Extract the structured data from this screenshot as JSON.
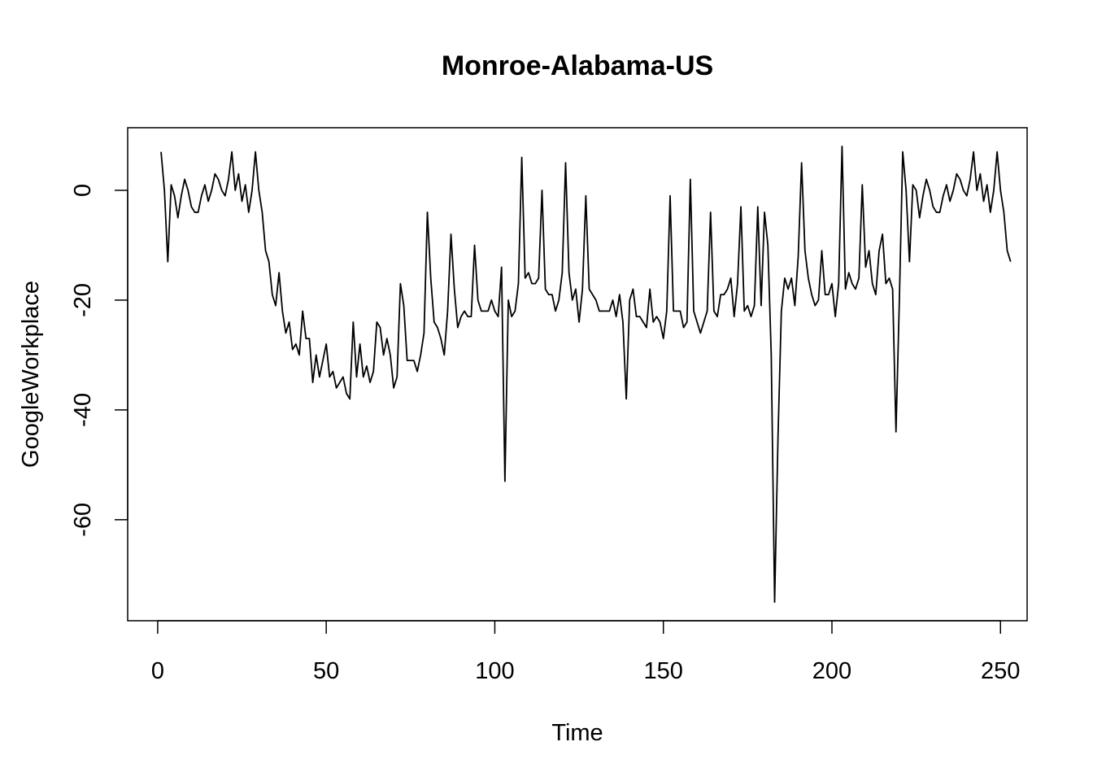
{
  "chart_data": {
    "type": "line",
    "title": "Monroe-Alabama-US",
    "xlabel": "Time",
    "ylabel": "GoogleWorkplace",
    "xlim": [
      -8.9,
      257.9
    ],
    "ylim": [
      -78.4,
      11.4
    ],
    "grid": false,
    "x_ticks": [
      0,
      50,
      100,
      150,
      200,
      250
    ],
    "x_tick_labels": [
      "0",
      "50",
      "100",
      "150",
      "200",
      "250"
    ],
    "y_ticks": [
      0,
      -20,
      -40,
      -60
    ],
    "y_tick_labels": [
      "0",
      "-20",
      "-40",
      "-60"
    ],
    "line_color": "#000000",
    "series": [
      {
        "x_start": 1,
        "values": [
          7,
          0,
          -13,
          1,
          -1,
          -5,
          -1,
          2,
          0,
          -3,
          -4,
          -4,
          -1,
          1,
          -2,
          0,
          3,
          2,
          0,
          -1,
          2,
          7,
          0,
          3,
          -2,
          1,
          -4,
          0,
          7,
          0,
          -4,
          -11,
          -13,
          -19,
          -21,
          -15,
          -22,
          -26,
          -24,
          -29,
          -28,
          -30,
          -22,
          -27,
          -27,
          -35,
          -30,
          -34,
          -31,
          -28,
          -34,
          -33,
          -36,
          -35,
          -34,
          -37,
          -38,
          -24,
          -34,
          -28,
          -34,
          -32,
          -35,
          -33,
          -24,
          -25,
          -30,
          -27,
          -30,
          -36,
          -34,
          -17,
          -21,
          -31,
          -31,
          -31,
          -33,
          -30,
          -26,
          -4,
          -16,
          -24,
          -25,
          -27,
          -30,
          -22,
          -8,
          -18,
          -25,
          -23,
          -22,
          -23,
          -23,
          -10,
          -20,
          -22,
          -22,
          -22,
          -20,
          -22,
          -23,
          -14,
          -53,
          -20,
          -23,
          -22,
          -17,
          6,
          -16,
          -15,
          -17,
          -17,
          -16,
          0,
          -18,
          -19,
          -19,
          -22,
          -20,
          -15,
          5,
          -15,
          -20,
          -18,
          -24,
          -18,
          -1,
          -18,
          -19,
          -20,
          -22,
          -22,
          -22,
          -22,
          -20,
          -23,
          -19,
          -24,
          -38,
          -20,
          -18,
          -23,
          -23,
          -24,
          -25,
          -18,
          -24,
          -23,
          -24,
          -27,
          -22,
          -1,
          -22,
          -22,
          -22,
          -25,
          -24,
          2,
          -22,
          -24,
          -26,
          -24,
          -22,
          -4,
          -22,
          -23,
          -19,
          -19,
          -18,
          -16,
          -23,
          -17,
          -3,
          -22,
          -21,
          -23,
          -21,
          -3,
          -21,
          -4,
          -10,
          -30,
          -75,
          -45,
          -22,
          -16,
          -18,
          -16,
          -21,
          -12,
          5,
          -11,
          -16,
          -19,
          -21,
          -20,
          -11,
          -19,
          -19,
          -17,
          -23,
          -17,
          8,
          -18,
          -15,
          -17,
          -18,
          -16,
          1,
          -14,
          -11,
          -17,
          -19,
          -11,
          -8,
          -17,
          -16,
          -18,
          -44,
          -20,
          7,
          0,
          -13,
          1,
          0,
          -5,
          -1,
          2,
          0,
          -3,
          -4,
          -4,
          -1,
          1,
          -2,
          0,
          3,
          2,
          0,
          -1,
          2,
          7,
          0,
          3,
          -2,
          1,
          -4,
          0,
          7,
          0,
          -4,
          -11,
          -13
        ]
      }
    ]
  }
}
